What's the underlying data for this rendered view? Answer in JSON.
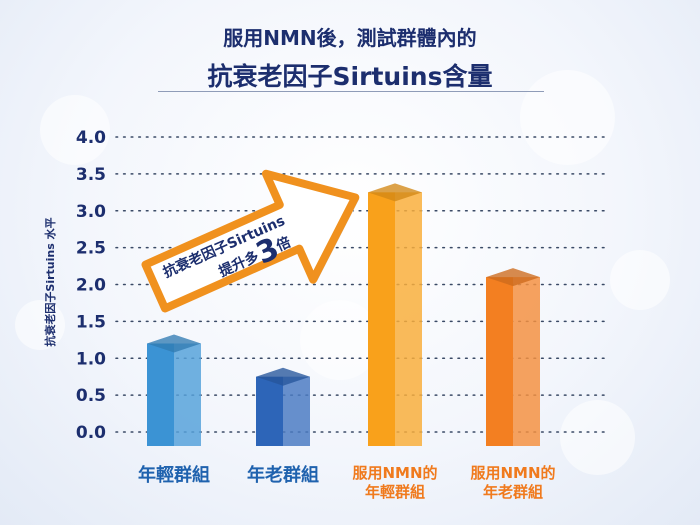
{
  "colors": {
    "title": "#1c2e6e",
    "young_bar": "#3b93d4",
    "old_bar": "#2d65b8",
    "nmn_young_bar": "#f9a11b",
    "nmn_old_bar": "#f37f21",
    "label_blue": "#1f62ae",
    "label_orange": "#f07a1d",
    "grid": "#3a4a66"
  },
  "callout": {
    "line1": "抗衰老因子Sirtuins",
    "line2": "提升多",
    "multiplier": "3",
    "unit": "倍"
  },
  "chart_data": {
    "type": "bar",
    "title": "服用NMN後，測試群體內的",
    "subtitle": "抗衰老因子Sirtuins含量",
    "xlabel": "",
    "ylabel": "抗衰老因子Sirtuins 水平",
    "categories": [
      "年輕群組",
      "年老群組",
      "服用NMN的年輕群組",
      "服用NMN的年老群組"
    ],
    "category_lines": [
      [
        "年輕群組"
      ],
      [
        "年老群組"
      ],
      [
        "服用NMN的",
        "年輕群組"
      ],
      [
        "服用NMN的",
        "年老群組"
      ]
    ],
    "values": [
      1.2,
      0.75,
      3.25,
      2.1
    ],
    "ylim": [
      0,
      4
    ],
    "yticks": [
      "0.0",
      "0.5",
      "1.0",
      "1.5",
      "2.0",
      "2.5",
      "3.0",
      "3.5",
      "4.0"
    ],
    "grid": true,
    "grid_style": "dotted"
  }
}
